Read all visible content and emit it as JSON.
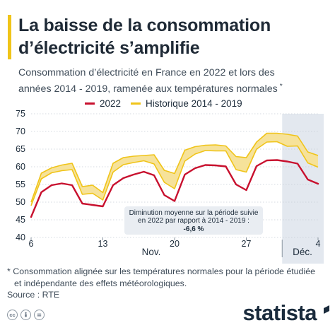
{
  "header": {
    "title_line1": "La baisse de la consommation",
    "title_line2": "d’électricité s’amplifie",
    "subtitle_line1": "Consommation d’électricité en France en 2022 et lors des",
    "subtitle_line2": "années 2014 - 2019, ramenée aux températures normales",
    "subtitle_mark": "*"
  },
  "legend": {
    "series_2022": "2022",
    "series_hist": "Historique 2014 - 2019"
  },
  "colors": {
    "series_2022": "#c8102e",
    "hist_band_fill": "#f6e29a",
    "hist_band_line": "#f0c419",
    "december_shade": "#e3e8ef",
    "grid": "#c7ced6",
    "annotation_bg": "#e9edf2"
  },
  "annotation": {
    "line1": "Diminution moyenne sur la période suivie",
    "line2": "en 2022 par rapport à 2014 - 2019 :",
    "line3": "-6,6 %"
  },
  "chart_data": {
    "type": "line",
    "x_tick_labels": [
      "6",
      "13",
      "20",
      "27",
      "4"
    ],
    "month_labels": [
      "Nov.",
      "Déc."
    ],
    "y_ticks": [
      40,
      45,
      50,
      55,
      60,
      65,
      70,
      75
    ],
    "ylim": [
      40,
      75
    ],
    "grid": true,
    "legend_position": "top",
    "days": [
      "Nov. 6",
      "Nov. 7",
      "Nov. 8",
      "Nov. 9",
      "Nov. 10",
      "Nov. 11",
      "Nov. 12",
      "Nov. 13",
      "Nov. 14",
      "Nov. 15",
      "Nov. 16",
      "Nov. 17",
      "Nov. 18",
      "Nov. 19",
      "Nov. 20",
      "Nov. 21",
      "Nov. 22",
      "Nov. 23",
      "Nov. 24",
      "Nov. 25",
      "Nov. 26",
      "Nov. 27",
      "Nov. 28",
      "Nov. 29",
      "Nov. 30",
      "Déc. 1",
      "Déc. 2",
      "Déc. 3",
      "Déc. 4"
    ],
    "shaded_region": [
      "Déc. 1",
      "Déc. 4"
    ],
    "series": [
      {
        "name": "2022",
        "values": [
          45.8,
          52.8,
          54.8,
          55.3,
          54.8,
          49.6,
          49.2,
          48.8,
          54.8,
          56.8,
          57.8,
          58.6,
          57.6,
          52.0,
          50.3,
          57.8,
          59.6,
          60.5,
          60.4,
          60.1,
          55.0,
          53.4,
          60.2,
          61.8,
          61.9,
          61.5,
          60.9,
          56.4,
          55.2
        ]
      },
      {
        "name": "Historique 2014 - 2019",
        "band_low": [
          49.0,
          56.6,
          58.3,
          58.9,
          59.2,
          52.2,
          52.5,
          50.6,
          58.5,
          60.6,
          61.2,
          61.7,
          60.8,
          55.6,
          53.8,
          61.6,
          63.6,
          64.6,
          64.5,
          64.5,
          59.2,
          58.5,
          65.0,
          67.0,
          67.1,
          65.8,
          65.9,
          61.1,
          59.9
        ],
        "band_high": [
          50.0,
          58.2,
          59.7,
          60.5,
          61.0,
          54.4,
          54.8,
          52.7,
          61.0,
          62.6,
          63.0,
          63.2,
          63.4,
          59.0,
          58.1,
          64.7,
          65.7,
          66.1,
          66.2,
          65.9,
          62.9,
          62.6,
          67.0,
          69.5,
          69.5,
          69.2,
          68.7,
          64.2,
          63.2
        ]
      }
    ]
  },
  "footnote": {
    "line1": "* Consommation alignée sur les températures normales pour la période étudiée",
    "line2": "et indépendante des effets météorologiques."
  },
  "source": "Source : RTE",
  "brand": "statista",
  "icons": [
    "cc-icon",
    "attribution-icon",
    "equals-icon",
    "statista-logo-icon"
  ]
}
